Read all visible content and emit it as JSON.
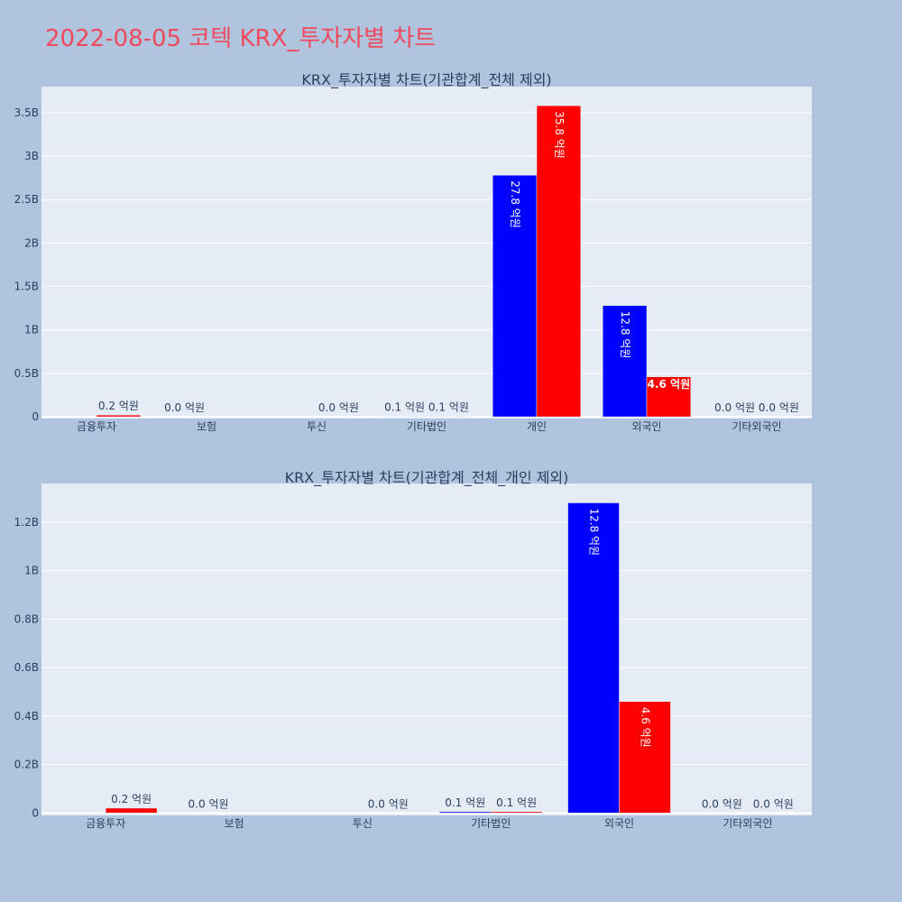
{
  "title": "2022-08-05 코텍 KRX_투자자별 차트",
  "colors": {
    "paper": "#b0c4de",
    "plot_bg": "#e5ecf6",
    "grid": "#ffffff",
    "buy": "#0000ff",
    "sell": "#ff0000",
    "title": "#ef4a5e",
    "text": "#2a3f5f"
  },
  "chart_data": [
    {
      "type": "bar",
      "title": "KRX_투자자별 차트(기관합계_전체 제외)",
      "categories": [
        "금융투자",
        "보험",
        "투신",
        "기타법인",
        "개인",
        "외국인",
        "기타외국인"
      ],
      "series": [
        {
          "color": "#0000ff",
          "values": [
            0,
            0,
            0,
            5000000,
            2780000000,
            1280000000,
            0
          ],
          "labels": [
            "",
            "0.0 억원",
            "",
            "0.1 억원",
            "27.8 억원",
            "12.8 억원",
            "0.0 억원"
          ]
        },
        {
          "color": "#ff0000",
          "values": [
            20000000,
            0,
            0,
            5000000,
            3580000000,
            460000000,
            0
          ],
          "labels": [
            "0.2 억원",
            "",
            "0.0 억원",
            "0.1 억원",
            "35.8 억원",
            "4.6 억원",
            "0.0 억원"
          ]
        }
      ],
      "yticks": [
        "0",
        "0.5B",
        "1B",
        "1.5B",
        "2B",
        "2.5B",
        "3B",
        "3.5B"
      ],
      "ytick_values": [
        0,
        500000000,
        1000000000,
        1500000000,
        2000000000,
        2500000000,
        3000000000,
        3500000000
      ],
      "ylim": [
        -20000000,
        3800000000
      ],
      "grid": true
    },
    {
      "type": "bar",
      "title": "KRX_투자자별 차트(기관합계_전체_개인 제외)",
      "categories": [
        "금융투자",
        "보험",
        "투신",
        "기타법인",
        "외국인",
        "기타외국인"
      ],
      "series": [
        {
          "color": "#0000ff",
          "values": [
            0,
            0,
            0,
            5000000,
            1280000000,
            0
          ],
          "labels": [
            "",
            "0.0 억원",
            "",
            "0.1 억원",
            "12.8 억원",
            "0.0 억원"
          ]
        },
        {
          "color": "#ff0000",
          "values": [
            20000000,
            0,
            0,
            5000000,
            460000000,
            0
          ],
          "labels": [
            "0.2 억원",
            "",
            "0.0 억원",
            "0.1 억원",
            "4.6 억원",
            "0.0 억원"
          ]
        }
      ],
      "yticks": [
        "0",
        "0.2B",
        "0.4B",
        "0.6B",
        "0.8B",
        "1B",
        "1.2B"
      ],
      "ytick_values": [
        0,
        200000000,
        400000000,
        600000000,
        800000000,
        1000000000,
        1200000000
      ],
      "ylim": [
        -10000000,
        1360000000
      ],
      "grid": true
    }
  ]
}
